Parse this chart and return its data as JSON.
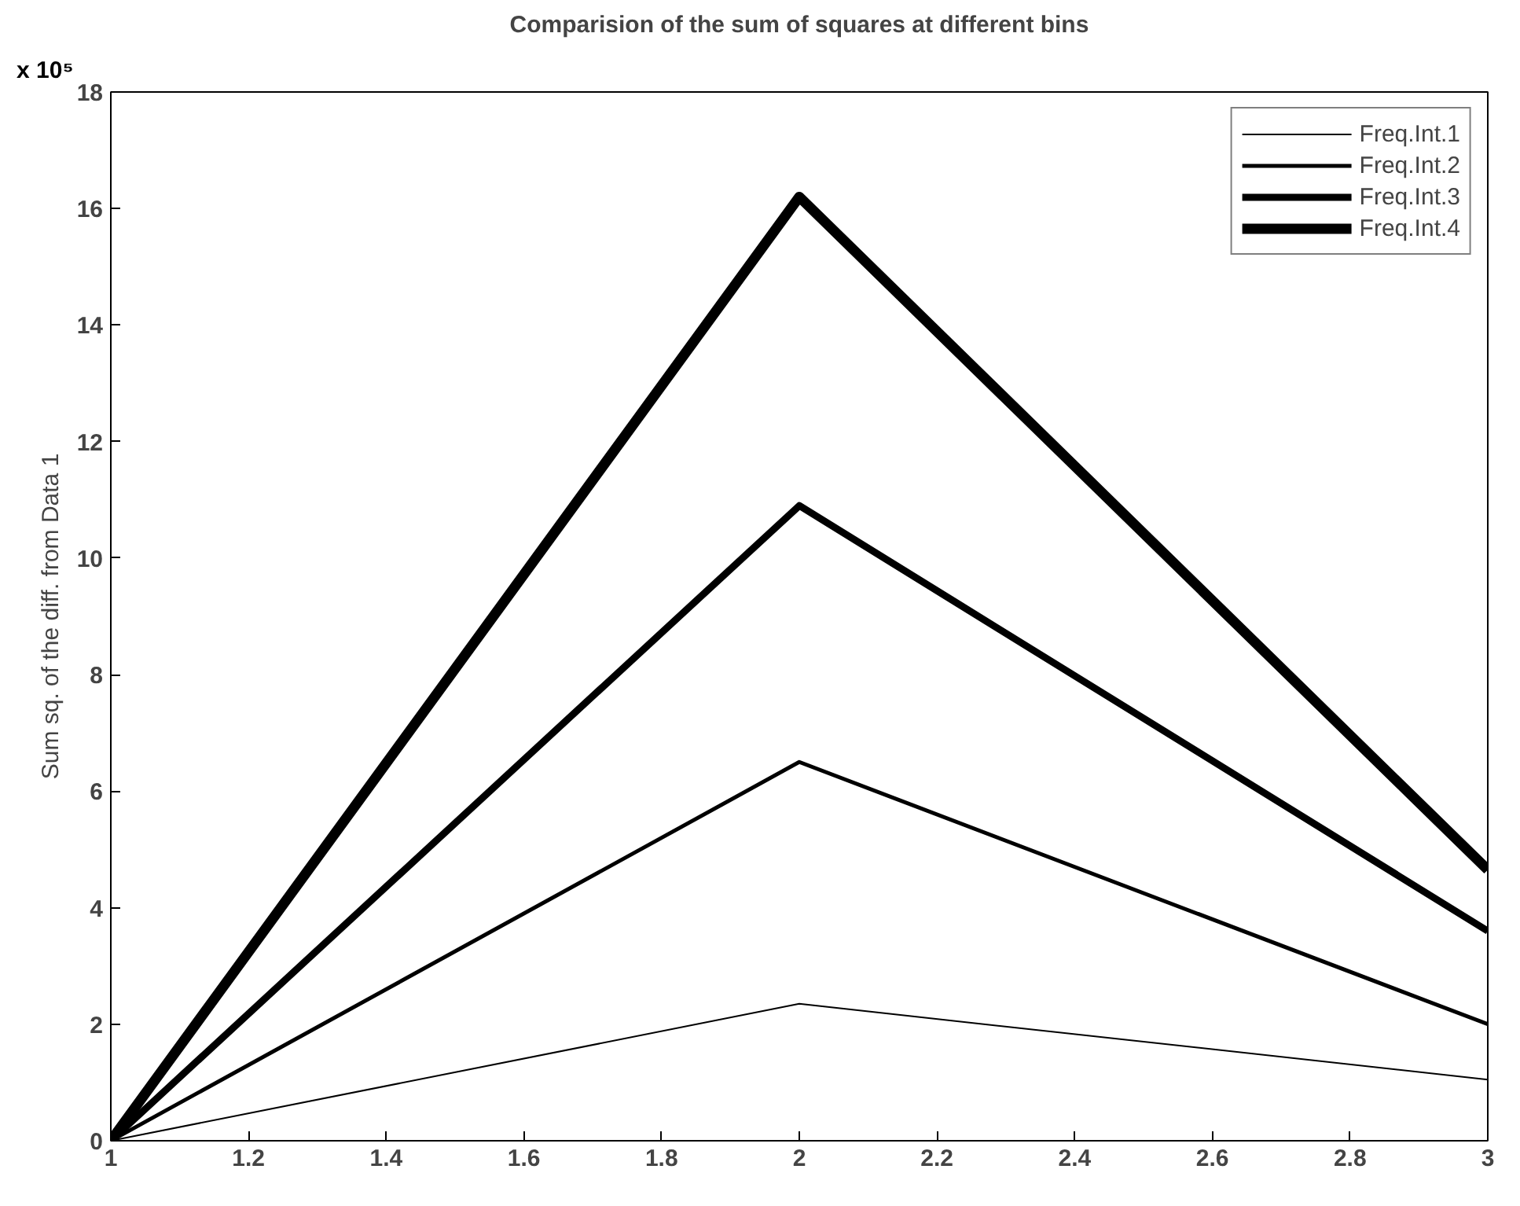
{
  "chart_data": {
    "type": "line",
    "title": "Comparision of the sum of squares at different bins",
    "ylabel": "Sum sq. of the diff. from Data 1",
    "x": [
      1,
      2,
      3
    ],
    "series": [
      {
        "name": "Freq.Int.1",
        "color": "#000000",
        "values": [
          0,
          2.35,
          1.05
        ]
      },
      {
        "name": "Freq.Int.2",
        "color": "#000000",
        "values": [
          0,
          6.5,
          2.0
        ]
      },
      {
        "name": "Freq.Int.3",
        "color": "#000000",
        "values": [
          0,
          10.9,
          3.6
        ]
      },
      {
        "name": "Freq.Int.4",
        "color": "#000000",
        "values": [
          0,
          16.2,
          4.65
        ]
      }
    ],
    "xlim": [
      1,
      3
    ],
    "ylim": [
      0,
      18
    ],
    "xticks": [
      1,
      1.2,
      1.4,
      1.6,
      1.8,
      2,
      2.2,
      2.4,
      2.6,
      2.8,
      3
    ],
    "yticks": [
      0,
      2,
      4,
      6,
      8,
      10,
      12,
      14,
      16,
      18
    ],
    "annotations": [
      "x 10⁵"
    ],
    "grid": false,
    "legend": "top right",
    "marker": "none",
    "line_style": "solid"
  }
}
